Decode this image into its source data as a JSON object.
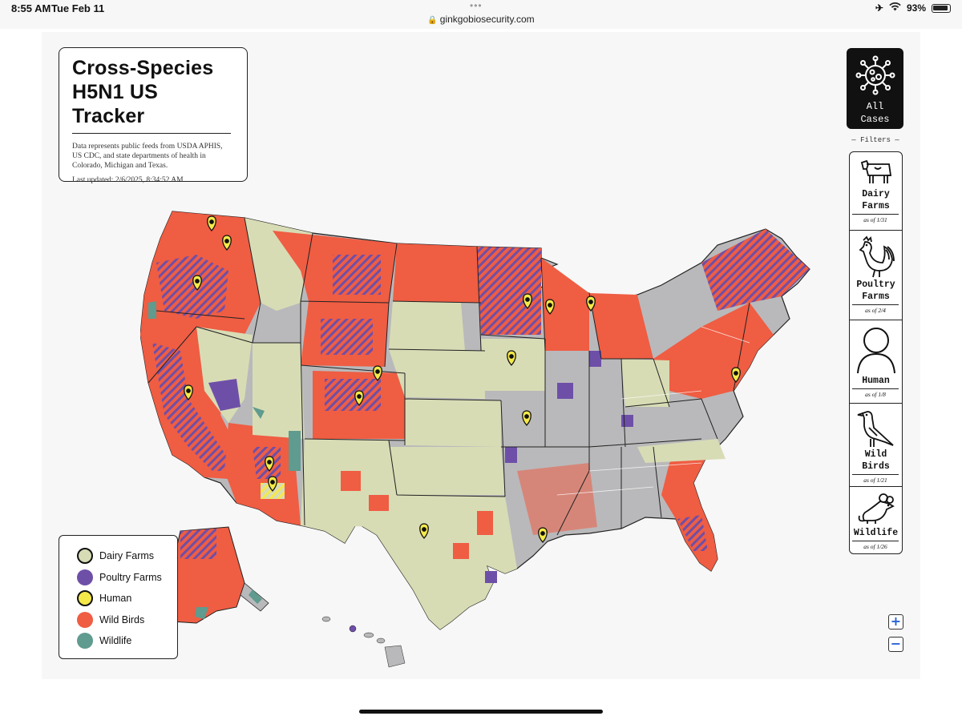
{
  "status_bar": {
    "time": "8:55 AM",
    "date": "Tue Feb 11",
    "url": "ginkgobiosecurity.com",
    "battery": "93%"
  },
  "header": {
    "title_line1": "Cross-Species",
    "title_line2": "H5N1 US Tracker",
    "description": "Data represents public feeds from USDA APHIS, US CDC, and state departments of health in Colorado, Michigan and Texas.",
    "last_updated": "Last updated: 2/6/2025, 8:34:52 AM"
  },
  "legend": [
    {
      "label": "Dairy Farms",
      "color": "#d8dcb5"
    },
    {
      "label": "Poultry Farms",
      "color": "#6e4fa8"
    },
    {
      "label": "Human",
      "color": "#f5e94a"
    },
    {
      "label": "Wild Birds",
      "color": "#ef5d43"
    },
    {
      "label": "Wildlife",
      "color": "#5f9b8e"
    }
  ],
  "all_cases": {
    "line1": "All",
    "line2": "Cases"
  },
  "filters_title": "Filters",
  "filters": [
    {
      "line1": "Dairy",
      "line2": "Farms",
      "as_of": "as of 1/31",
      "icon": "cow-icon"
    },
    {
      "line1": "Poultry",
      "line2": "Farms",
      "as_of": "as of 2/4",
      "icon": "rooster-icon"
    },
    {
      "line1": "Human",
      "line2": "",
      "as_of": "as of 1/8",
      "icon": "person-icon"
    },
    {
      "line1": "Wild",
      "line2": "Birds",
      "as_of": "as of 1/21",
      "icon": "bird-icon"
    },
    {
      "line1": "Wildlife",
      "line2": "",
      "as_of": "as of 1/26",
      "icon": "mouse-icon"
    }
  ],
  "zoom": {
    "in": "+",
    "out": "−"
  },
  "colors": {
    "dairy": "#d8dcb5",
    "poultry": "#6e4fa8",
    "human": "#f5e94a",
    "wild_birds": "#ef5d43",
    "wildlife": "#5f9b8e",
    "no_data": "#b9b9bb"
  }
}
